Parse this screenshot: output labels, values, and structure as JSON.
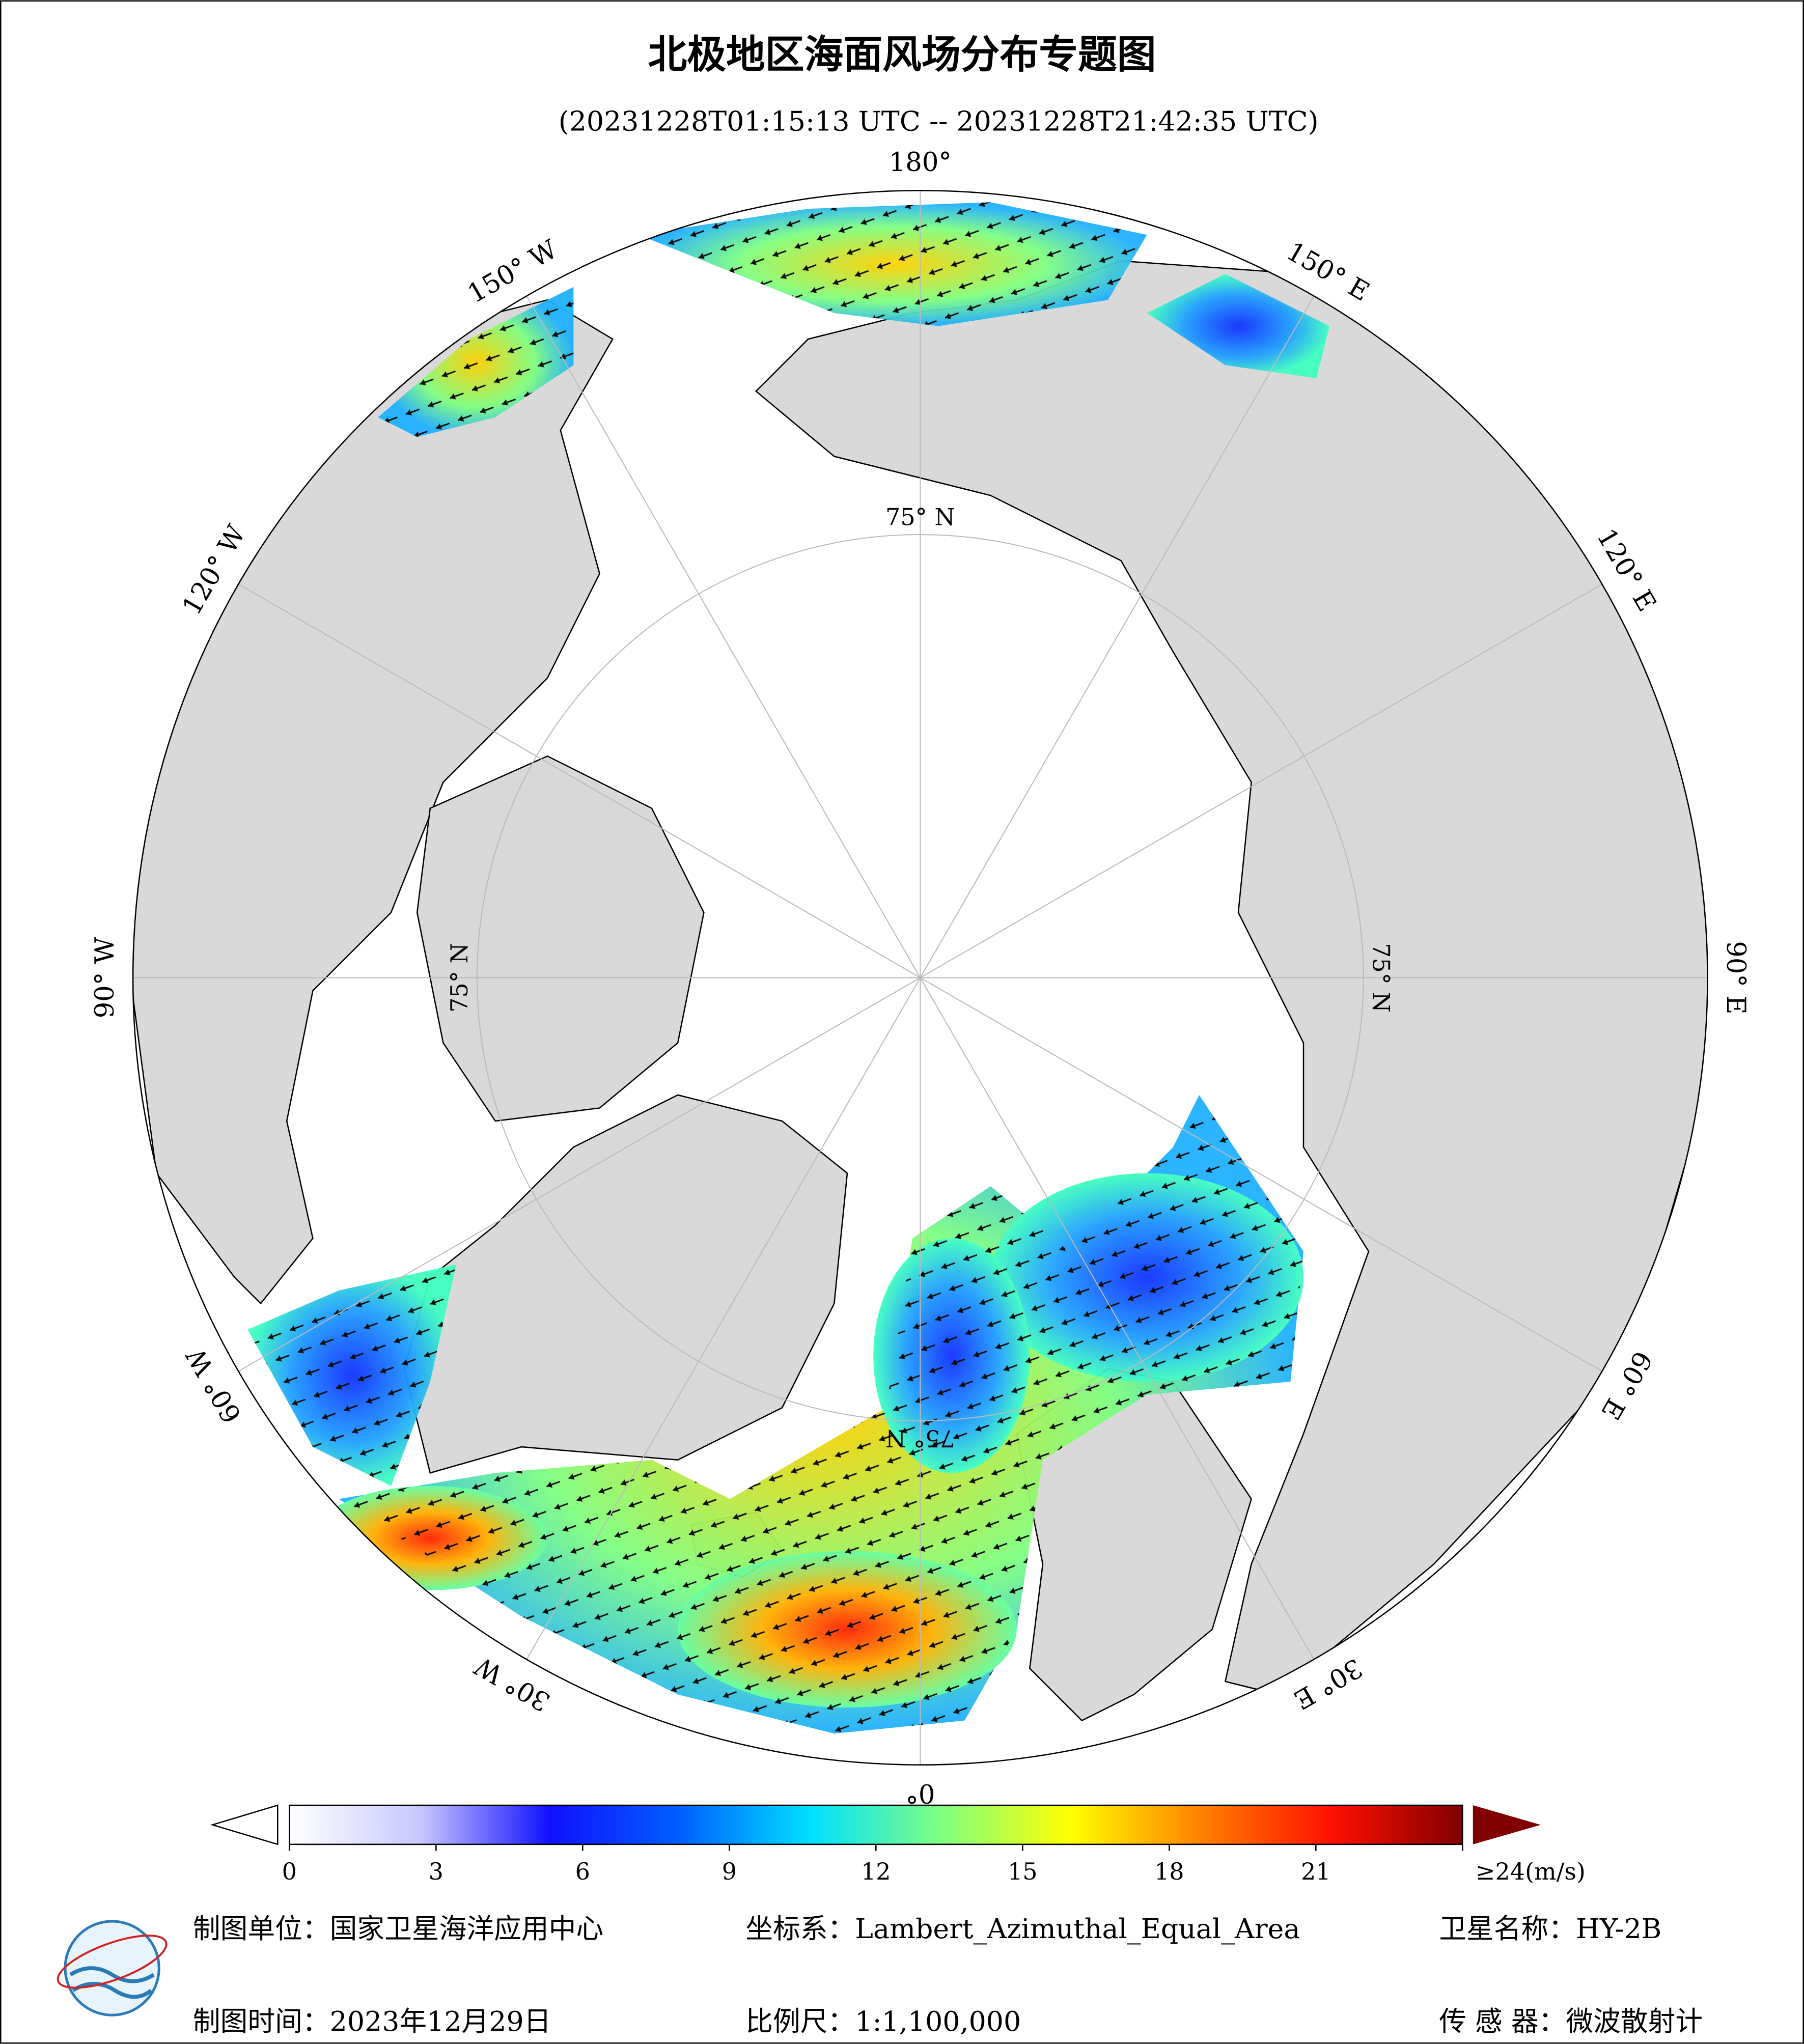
{
  "header": {
    "title": "北极地区海面风场分布专题图",
    "subtitle": "(20231228T01:15:13 UTC -- 20231228T21:42:35 UTC)"
  },
  "map": {
    "meridian_labels": [
      "180°",
      "150° E",
      "120° E",
      "90° E",
      "60° E",
      "30° E",
      "0°",
      "30° W",
      "60° W",
      "90° W",
      "120° W",
      "150° W"
    ],
    "parallel_labels": [
      "75° N",
      "75° N",
      "75° N",
      "75° N"
    ]
  },
  "colorbar": {
    "range": [
      0,
      24
    ],
    "ticks": [
      0,
      3,
      6,
      9,
      12,
      15,
      18,
      21,
      {
        "value": 24,
        "label": "≥24(m/s)"
      }
    ],
    "colors": [
      "#ffffff",
      "#c8c8ff",
      "#1010ff",
      "#0060ff",
      "#00e0ff",
      "#80ff80",
      "#ffff00",
      "#ff8000",
      "#ff1000",
      "#800000"
    ]
  },
  "footer": {
    "unit": "制图单位：国家卫星海洋应用中心",
    "crs": "坐标系：Lambert_Azimuthal_Equal_Area",
    "satellite": "卫星名称：HY-2B",
    "date": "制图时间：2023年12月29日",
    "scale": "比例尺：1:1,100,000",
    "sensor": "传 感 器：微波散射计"
  }
}
